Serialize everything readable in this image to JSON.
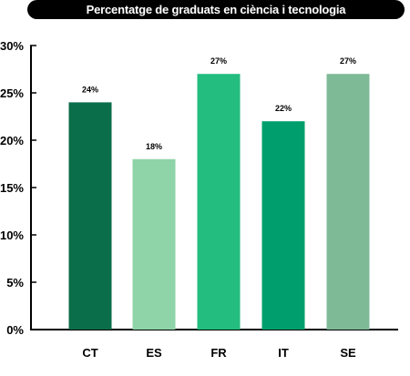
{
  "chart_data": {
    "type": "bar",
    "title": "Percentatge de graduats en ciència i tecnologia",
    "categories": [
      "CT",
      "ES",
      "FR",
      "IT",
      "SE"
    ],
    "values": [
      24,
      18,
      27,
      22,
      27
    ],
    "data_labels": [
      "24%",
      "18%",
      "27%",
      "22%",
      "27%"
    ],
    "bar_colors": [
      "#0b6e4a",
      "#8fd3a8",
      "#23bd80",
      "#009e6c",
      "#7fba97"
    ],
    "ylim": [
      0,
      30
    ],
    "yticks": [
      0,
      5,
      10,
      15,
      20,
      25,
      30
    ],
    "ytick_labels": [
      "0%",
      "5%",
      "10%",
      "15%",
      "20%",
      "25%",
      "30%"
    ],
    "xlabel": "",
    "ylabel": "",
    "grid": false,
    "legend": "none"
  }
}
